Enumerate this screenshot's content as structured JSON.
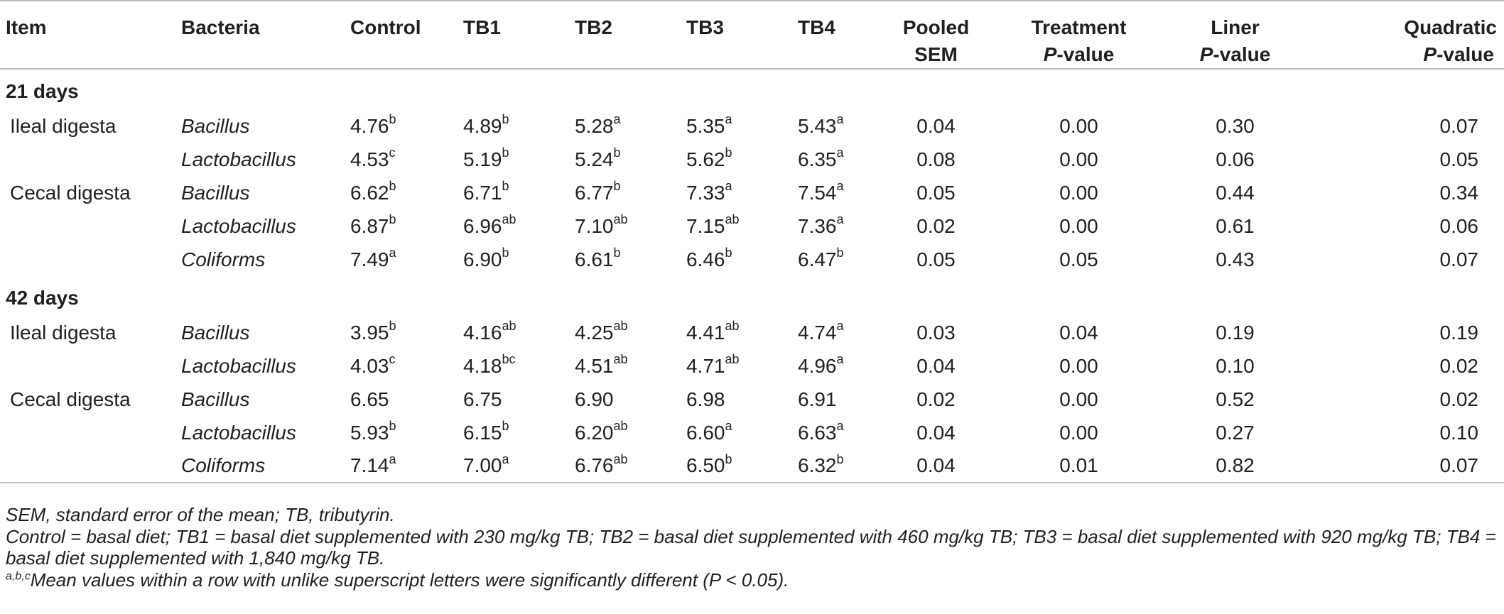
{
  "table": {
    "headers": {
      "item": "Item",
      "bacteria": "Bacteria",
      "control": "Control",
      "tb1": "TB1",
      "tb2": "TB2",
      "tb3": "TB3",
      "tb4": "TB4",
      "sem_line1": "Pooled",
      "sem_line2": "SEM",
      "treatment_line1": "Treatment",
      "treatment_p": "P",
      "treatment_suffix": "-value",
      "liner_line1": "Liner",
      "liner_p": "P",
      "liner_suffix": "-value",
      "quad_line1": "Quadratic",
      "quad_p": "P",
      "quad_suffix": "-value"
    },
    "sections": [
      {
        "label": "21 days",
        "rows": [
          {
            "item": "Ileal digesta",
            "bacteria": "Bacillus",
            "c": "4.76",
            "c_sup": "b",
            "t1": "4.89",
            "t1_sup": "b",
            "t2": "5.28",
            "t2_sup": "a",
            "t3": "5.35",
            "t3_sup": "a",
            "t4": "5.43",
            "t4_sup": "a",
            "sem": "0.04",
            "treat": "0.00",
            "lin": "0.30",
            "quad": "0.07"
          },
          {
            "item": "",
            "bacteria": "Lactobacillus",
            "c": "4.53",
            "c_sup": "c",
            "t1": "5.19",
            "t1_sup": "b",
            "t2": "5.24",
            "t2_sup": "b",
            "t3": "5.62",
            "t3_sup": "b",
            "t4": "6.35",
            "t4_sup": "a",
            "sem": "0.08",
            "treat": "0.00",
            "lin": "0.06",
            "quad": "0.05"
          },
          {
            "item": "Cecal digesta",
            "bacteria": "Bacillus",
            "c": "6.62",
            "c_sup": "b",
            "t1": "6.71",
            "t1_sup": "b",
            "t2": "6.77",
            "t2_sup": "b",
            "t3": "7.33",
            "t3_sup": "a",
            "t4": "7.54",
            "t4_sup": "a",
            "sem": "0.05",
            "treat": "0.00",
            "lin": "0.44",
            "quad": "0.34"
          },
          {
            "item": "",
            "bacteria": "Lactobacillus",
            "c": "6.87",
            "c_sup": "b",
            "t1": "6.96",
            "t1_sup": "ab",
            "t2": "7.10",
            "t2_sup": "ab",
            "t3": "7.15",
            "t3_sup": "ab",
            "t4": "7.36",
            "t4_sup": "a",
            "sem": "0.02",
            "treat": "0.00",
            "lin": "0.61",
            "quad": "0.06"
          },
          {
            "item": "",
            "bacteria": "Coliforms",
            "c": "7.49",
            "c_sup": "a",
            "t1": "6.90",
            "t1_sup": "b",
            "t2": "6.61",
            "t2_sup": "b",
            "t3": "6.46",
            "t3_sup": "b",
            "t4": "6.47",
            "t4_sup": "b",
            "sem": "0.05",
            "treat": "0.05",
            "lin": "0.43",
            "quad": "0.07"
          }
        ]
      },
      {
        "label": "42 days",
        "rows": [
          {
            "item": "Ileal digesta",
            "bacteria": "Bacillus",
            "c": "3.95",
            "c_sup": "b",
            "t1": "4.16",
            "t1_sup": "ab",
            "t2": "4.25",
            "t2_sup": "ab",
            "t3": "4.41",
            "t3_sup": "ab",
            "t4": "4.74",
            "t4_sup": "a",
            "sem": "0.03",
            "treat": "0.04",
            "lin": "0.19",
            "quad": "0.19"
          },
          {
            "item": "",
            "bacteria": "Lactobacillus",
            "c": "4.03",
            "c_sup": "c",
            "t1": "4.18",
            "t1_sup": "bc",
            "t2": "4.51",
            "t2_sup": "ab",
            "t3": "4.71",
            "t3_sup": "ab",
            "t4": "4.96",
            "t4_sup": "a",
            "sem": "0.04",
            "treat": "0.00",
            "lin": "0.10",
            "quad": "0.02"
          },
          {
            "item": "Cecal digesta",
            "bacteria": "Bacillus",
            "c": "6.65",
            "c_sup": "",
            "t1": "6.75",
            "t1_sup": "",
            "t2": "6.90",
            "t2_sup": "",
            "t3": "6.98",
            "t3_sup": "",
            "t4": "6.91",
            "t4_sup": "",
            "sem": "0.02",
            "treat": "0.00",
            "lin": "0.52",
            "quad": "0.02"
          },
          {
            "item": "",
            "bacteria": "Lactobacillus",
            "c": "5.93",
            "c_sup": "b",
            "t1": "6.15",
            "t1_sup": "b",
            "t2": "6.20",
            "t2_sup": "ab",
            "t3": "6.60",
            "t3_sup": "a",
            "t4": "6.63",
            "t4_sup": "a",
            "sem": "0.04",
            "treat": "0.00",
            "lin": "0.27",
            "quad": "0.10"
          },
          {
            "item": "",
            "bacteria": "Coliforms",
            "c": "7.14",
            "c_sup": "a",
            "t1": "7.00",
            "t1_sup": "a",
            "t2": "6.76",
            "t2_sup": "ab",
            "t3": "6.50",
            "t3_sup": "b",
            "t4": "6.32",
            "t4_sup": "b",
            "sem": "0.04",
            "treat": "0.01",
            "lin": "0.82",
            "quad": "0.07"
          }
        ]
      }
    ]
  },
  "footnotes": {
    "line1": "SEM, standard error of the mean; TB, tributyrin.",
    "line2": "Control = basal diet; TB1 = basal diet supplemented with 230 mg/kg TB; TB2 = basal diet supplemented with 460 mg/kg TB; TB3 = basal diet supplemented with 920 mg/kg TB; TB4 = basal diet supplemented with 1,840 mg/kg TB.",
    "line3_sup": "a,b,c",
    "line3": "Mean values within a row with unlike superscript letters were significantly different (P < 0.05)."
  }
}
